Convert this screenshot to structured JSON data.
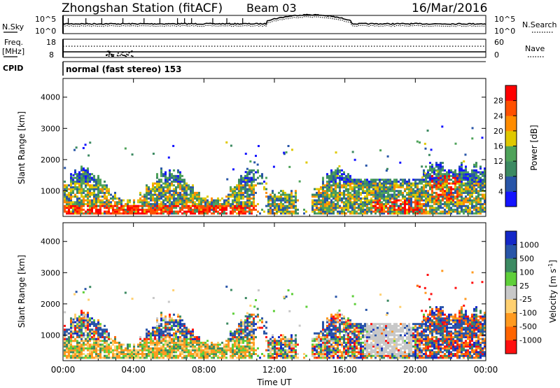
{
  "header": {
    "title": "Zhongshan Station (fitACF)",
    "beam": "Beam 03",
    "date": "16/Mar/2016"
  },
  "noise_panel": {
    "left_label": "N.Sky",
    "left_ticks": [
      "10^5",
      "10^0"
    ],
    "right_ticks": [
      "10^5",
      "10^0"
    ],
    "right_label": "N.Search"
  },
  "freq_panel": {
    "left_label_1": "Freq.",
    "left_label_2": "[MHz]",
    "left_ticks": [
      "18",
      "8"
    ],
    "right_ticks": [
      "60",
      "0"
    ],
    "right_label": "Nave"
  },
  "cpid_panel": {
    "label": "CPID",
    "text": "normal (fast stereo) 153"
  },
  "colors": {
    "power_scale": [
      "#1414ff",
      "#2855a8",
      "#3c8a62",
      "#4fa35a",
      "#e0c800",
      "#ff8c00",
      "#ff5000",
      "#ff0000"
    ],
    "velocity_scale": [
      "#ff1010",
      "#ff6400",
      "#ff9a20",
      "#ffd070",
      "#c8c8c8",
      "#5fcf3a",
      "#3c8a62",
      "#2855a8",
      "#1428c8"
    ]
  },
  "chart_data": [
    {
      "type": "heatmap",
      "name": "power",
      "xlabel": "",
      "ylabel": "Slant Range [km]",
      "x_ticks": [
        "00:00",
        "04:00",
        "08:00",
        "12:00",
        "16:00",
        "20:00",
        "00:00"
      ],
      "y_ticks": [
        1000,
        2000,
        3000,
        4000
      ],
      "xlim": [
        0,
        24
      ],
      "ylim": [
        180,
        4600
      ],
      "colorbar_label": "Power [dB]",
      "colorbar_ticks": [
        4,
        8,
        12,
        16,
        20,
        24,
        28
      ],
      "colorbar_range": [
        0,
        32
      ]
    },
    {
      "type": "heatmap",
      "name": "velocity",
      "xlabel": "Time UT",
      "ylabel": "Slant Range [km]",
      "x_ticks": [
        "00:00",
        "04:00",
        "08:00",
        "12:00",
        "16:00",
        "20:00",
        "00:00"
      ],
      "y_ticks": [
        1000,
        2000,
        3000,
        4000
      ],
      "xlim": [
        0,
        24
      ],
      "ylim": [
        180,
        4600
      ],
      "colorbar_label": "Velocity [m s^-1]",
      "colorbar_ticks": [
        "1000",
        "500",
        "100",
        "25",
        "-25",
        "-100",
        "-500",
        "-1000"
      ]
    }
  ]
}
